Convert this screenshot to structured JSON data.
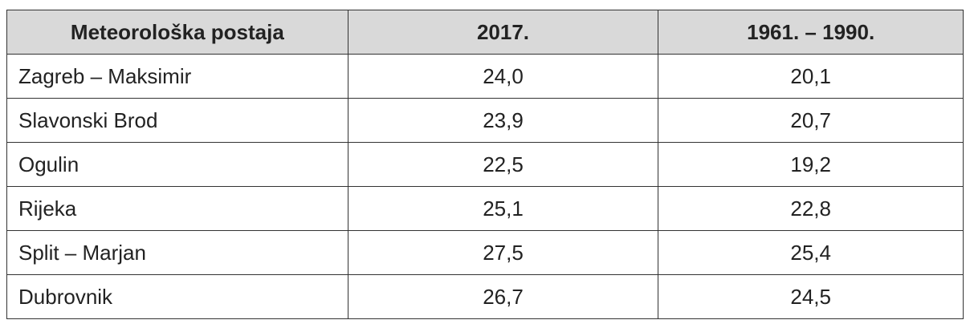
{
  "table": {
    "header": [
      "Meteorološka postaja",
      "2017.",
      "1961. – 1990."
    ],
    "rows": [
      [
        "Zagreb – Maksimir",
        "24,0",
        "20,1"
      ],
      [
        "Slavonski Brod",
        "23,9",
        "20,7"
      ],
      [
        "Ogulin",
        "22,5",
        "19,2"
      ],
      [
        "Rijeka",
        "25,1",
        "22,8"
      ],
      [
        "Split – Marjan",
        "27,5",
        "25,4"
      ],
      [
        "Dubrovnik",
        "26,7",
        "24,5"
      ]
    ]
  }
}
